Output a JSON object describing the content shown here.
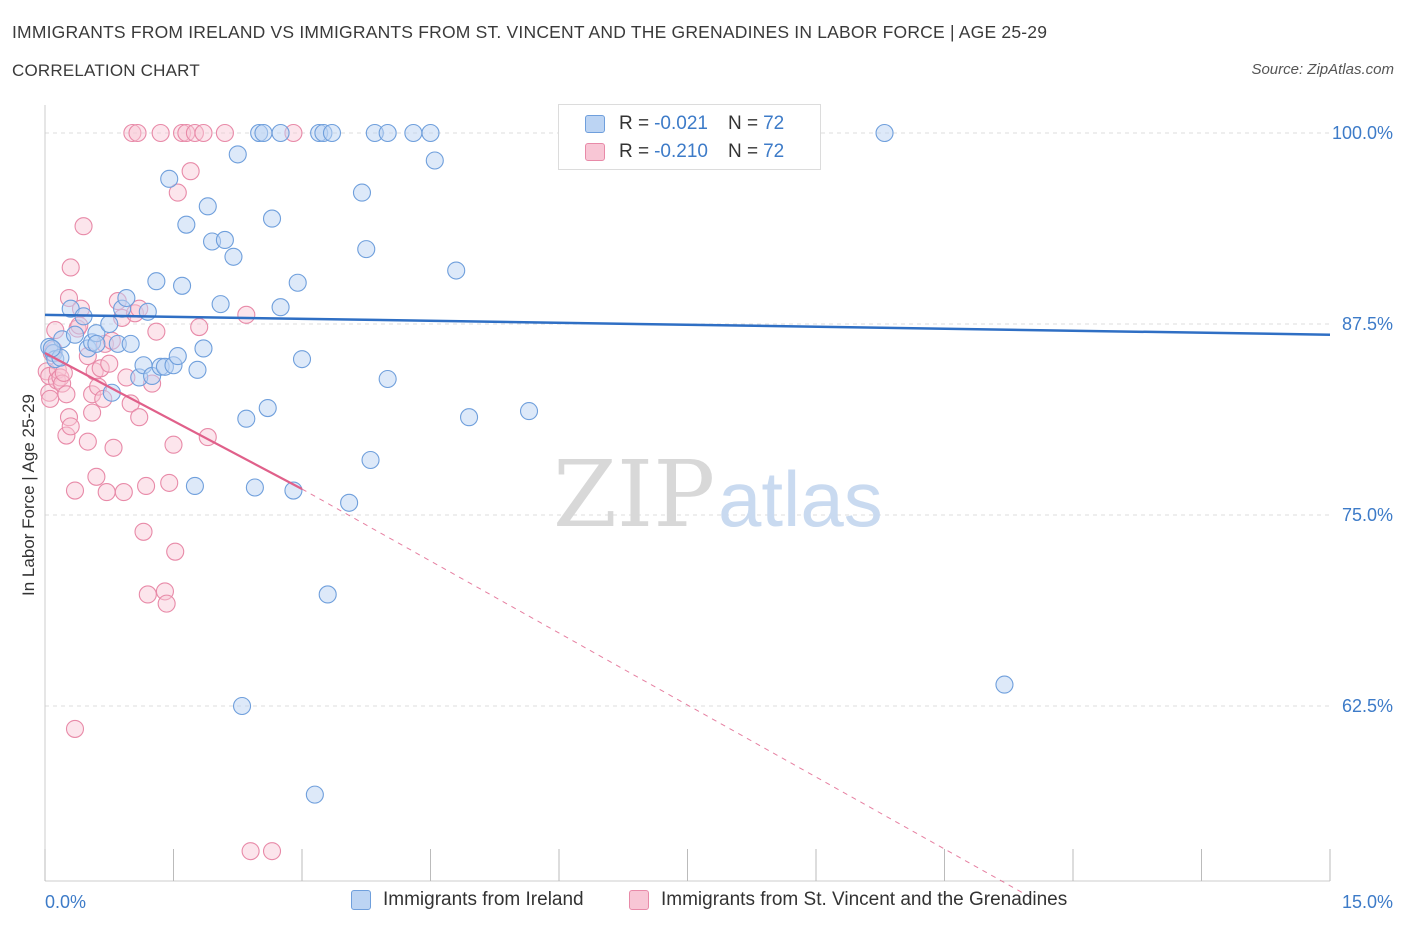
{
  "header": {
    "title": "IMMIGRANTS FROM IRELAND VS IMMIGRANTS FROM ST. VINCENT AND THE GRENADINES IN LABOR FORCE | AGE 25-29",
    "subtitle": "CORRELATION CHART",
    "source": "Source: ZipAtlas.com"
  },
  "legend": {
    "r_label": "R =",
    "n_label": "N =",
    "rows": [
      {
        "r": "-0.021",
        "n": "72"
      },
      {
        "r": "-0.210",
        "n": "72"
      }
    ]
  },
  "colors": {
    "blue_fill": "#bcd4f3",
    "blue_stroke": "#6f9fdc",
    "blue_line": "#2f6fc4",
    "pink_fill": "#f8c6d5",
    "pink_stroke": "#e88aa8",
    "pink_line": "#e0608a",
    "grid": "#dddddd",
    "tick_text": "#3d7bc8"
  },
  "watermark": {
    "zip": "ZIP",
    "atlas": "atlas"
  },
  "chart_data": {
    "type": "scatter",
    "title": "IMMIGRANTS FROM IRELAND VS IMMIGRANTS FROM ST. VINCENT AND THE GRENADINES IN LABOR FORCE | AGE 25-29",
    "subtitle": "CORRELATION CHART",
    "xlabel": "",
    "ylabel": "In Labor Force | Age 25-29",
    "xlim": [
      0,
      15
    ],
    "ylim": [
      50,
      100
    ],
    "x_tick_labels": [
      "0.0%",
      "15.0%"
    ],
    "y_ticks": [
      62.5,
      75.0,
      87.5,
      100.0
    ],
    "y_tick_labels": [
      "62.5%",
      "75.0%",
      "87.5%",
      "100.0%"
    ],
    "grid": "horizontal dashed",
    "legend_placement": "top-center",
    "series": [
      {
        "name": "Immigrants from Ireland",
        "color": "blue",
        "trend": {
          "x": [
            0,
            15
          ],
          "y": [
            88.1,
            86.8
          ],
          "style": "solid"
        },
        "points": [
          [
            0.05,
            86.0
          ],
          [
            0.1,
            85.6
          ],
          [
            0.12,
            85.2
          ],
          [
            0.18,
            85.3
          ],
          [
            0.2,
            86.5
          ],
          [
            0.3,
            88.5
          ],
          [
            0.35,
            86.8
          ],
          [
            0.45,
            88.0
          ],
          [
            0.5,
            85.9
          ],
          [
            0.55,
            86.3
          ],
          [
            0.6,
            86.9
          ],
          [
            0.75,
            87.5
          ],
          [
            0.78,
            83.0
          ],
          [
            0.85,
            86.2
          ],
          [
            0.9,
            88.5
          ],
          [
            0.95,
            89.2
          ],
          [
            1.0,
            86.2
          ],
          [
            1.1,
            84.0
          ],
          [
            1.15,
            84.8
          ],
          [
            1.2,
            88.3
          ],
          [
            1.25,
            84.1
          ],
          [
            1.3,
            90.3
          ],
          [
            1.35,
            84.7
          ],
          [
            1.4,
            84.7
          ],
          [
            1.45,
            97.0
          ],
          [
            1.5,
            84.8
          ],
          [
            1.55,
            85.4
          ],
          [
            1.6,
            90.0
          ],
          [
            1.65,
            94.0
          ],
          [
            1.75,
            76.9
          ],
          [
            1.78,
            84.5
          ],
          [
            1.85,
            85.9
          ],
          [
            1.9,
            95.2
          ],
          [
            1.95,
            92.9
          ],
          [
            2.05,
            88.8
          ],
          [
            2.1,
            93.0
          ],
          [
            2.2,
            91.9
          ],
          [
            2.25,
            98.6
          ],
          [
            2.3,
            62.5
          ],
          [
            2.35,
            81.3
          ],
          [
            2.45,
            76.8
          ],
          [
            2.5,
            100.0
          ],
          [
            2.55,
            100.0
          ],
          [
            2.6,
            82.0
          ],
          [
            2.65,
            94.4
          ],
          [
            2.75,
            100.0
          ],
          [
            2.75,
            88.6
          ],
          [
            2.9,
            76.6
          ],
          [
            2.95,
            90.2
          ],
          [
            3.0,
            85.2
          ],
          [
            3.15,
            56.7
          ],
          [
            3.2,
            100.0
          ],
          [
            3.25,
            100.0
          ],
          [
            3.35,
            100.0
          ],
          [
            3.3,
            69.8
          ],
          [
            3.55,
            75.8
          ],
          [
            3.7,
            96.1
          ],
          [
            3.75,
            92.4
          ],
          [
            3.8,
            78.6
          ],
          [
            3.85,
            100.0
          ],
          [
            4.0,
            100.0
          ],
          [
            4.3,
            100.0
          ],
          [
            4.0,
            83.9
          ],
          [
            4.5,
            100.0
          ],
          [
            4.55,
            98.2
          ],
          [
            4.8,
            91.0
          ],
          [
            4.95,
            81.4
          ],
          [
            5.65,
            81.8
          ],
          [
            9.8,
            100.0
          ],
          [
            11.2,
            63.9
          ],
          [
            0.08,
            85.9
          ],
          [
            0.6,
            86.2
          ]
        ]
      },
      {
        "name": "Immigrants from St. Vincent and the Grenadines",
        "color": "pink",
        "trend": {
          "x": [
            0,
            3.0
          ],
          "y": [
            85.6,
            76.7
          ],
          "style": "solid",
          "extended": {
            "x": [
              3.0,
              11.5
            ],
            "y": [
              76.7,
              50.0
            ],
            "style": "dashed"
          }
        },
        "points": [
          [
            0.02,
            84.4
          ],
          [
            0.05,
            83.0
          ],
          [
            0.05,
            84.1
          ],
          [
            0.06,
            82.6
          ],
          [
            0.08,
            85.6
          ],
          [
            0.1,
            85.8
          ],
          [
            0.12,
            87.1
          ],
          [
            0.14,
            83.8
          ],
          [
            0.15,
            84.5
          ],
          [
            0.18,
            84.0
          ],
          [
            0.2,
            83.6
          ],
          [
            0.22,
            84.3
          ],
          [
            0.25,
            80.2
          ],
          [
            0.25,
            82.9
          ],
          [
            0.28,
            81.4
          ],
          [
            0.28,
            89.2
          ],
          [
            0.3,
            80.8
          ],
          [
            0.3,
            91.2
          ],
          [
            0.35,
            76.6
          ],
          [
            0.35,
            61.0
          ],
          [
            0.38,
            87.2
          ],
          [
            0.4,
            87.4
          ],
          [
            0.42,
            88.5
          ],
          [
            0.45,
            93.9
          ],
          [
            0.5,
            85.4
          ],
          [
            0.5,
            79.8
          ],
          [
            0.55,
            82.9
          ],
          [
            0.55,
            81.7
          ],
          [
            0.58,
            84.4
          ],
          [
            0.6,
            77.5
          ],
          [
            0.62,
            83.4
          ],
          [
            0.65,
            84.6
          ],
          [
            0.68,
            82.6
          ],
          [
            0.7,
            86.2
          ],
          [
            0.72,
            76.5
          ],
          [
            0.75,
            84.9
          ],
          [
            0.78,
            86.4
          ],
          [
            0.8,
            79.4
          ],
          [
            0.85,
            89.0
          ],
          [
            0.9,
            87.9
          ],
          [
            0.92,
            76.5
          ],
          [
            0.95,
            84.0
          ],
          [
            1.0,
            82.3
          ],
          [
            1.02,
            100.0
          ],
          [
            1.05,
            88.2
          ],
          [
            1.08,
            100.0
          ],
          [
            1.1,
            81.4
          ],
          [
            1.1,
            88.5
          ],
          [
            1.15,
            73.9
          ],
          [
            1.18,
            76.9
          ],
          [
            1.2,
            69.8
          ],
          [
            1.25,
            83.6
          ],
          [
            1.3,
            87.0
          ],
          [
            1.35,
            100.0
          ],
          [
            1.4,
            70.0
          ],
          [
            1.42,
            69.2
          ],
          [
            1.45,
            77.1
          ],
          [
            1.5,
            79.6
          ],
          [
            1.52,
            72.6
          ],
          [
            1.55,
            96.1
          ],
          [
            1.6,
            100.0
          ],
          [
            1.65,
            100.0
          ],
          [
            1.7,
            97.5
          ],
          [
            1.75,
            100.0
          ],
          [
            1.8,
            87.3
          ],
          [
            1.85,
            100.0
          ],
          [
            1.9,
            80.1
          ],
          [
            2.1,
            100.0
          ],
          [
            2.35,
            88.1
          ],
          [
            2.4,
            53.0
          ],
          [
            2.65,
            53.0
          ],
          [
            2.9,
            100.0
          ]
        ]
      }
    ]
  }
}
